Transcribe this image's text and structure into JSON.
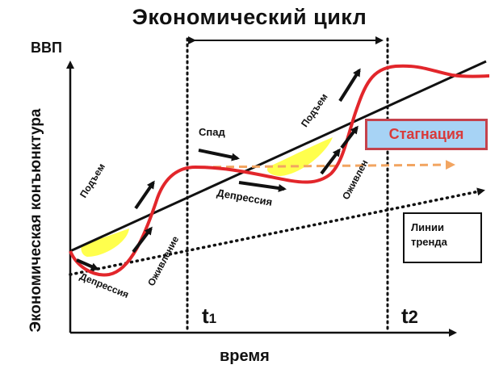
{
  "title": "Экономический цикл",
  "y_axis": {
    "top_label": "ВВП",
    "side_label": "Экономическая конъюнктура"
  },
  "x_axis": {
    "label": "время"
  },
  "time_marks": {
    "t1": {
      "main": "t",
      "sub": "1"
    },
    "t2": {
      "main": "t",
      "sub": "2"
    }
  },
  "phases": {
    "upturn_1": "Подъем",
    "depression_1": "Депрессия",
    "revival_1": "Оживление",
    "decline": "Спад",
    "depression_2": "Депрессия",
    "upturn_2": "Подъем",
    "revival_2": "Оживлен"
  },
  "stagnation": {
    "label": "Стагнация"
  },
  "trend_box": {
    "line1": "Линии",
    "line2": "тренда"
  },
  "colors": {
    "cycle_curve": "#e2262b",
    "highlight": "#ffff4d",
    "stagnation_arrow": "#f2a561",
    "stagnation_fill": "#a7d3f5",
    "stagnation_border": "#c4424c",
    "stagnation_text": "#d93a3a"
  }
}
